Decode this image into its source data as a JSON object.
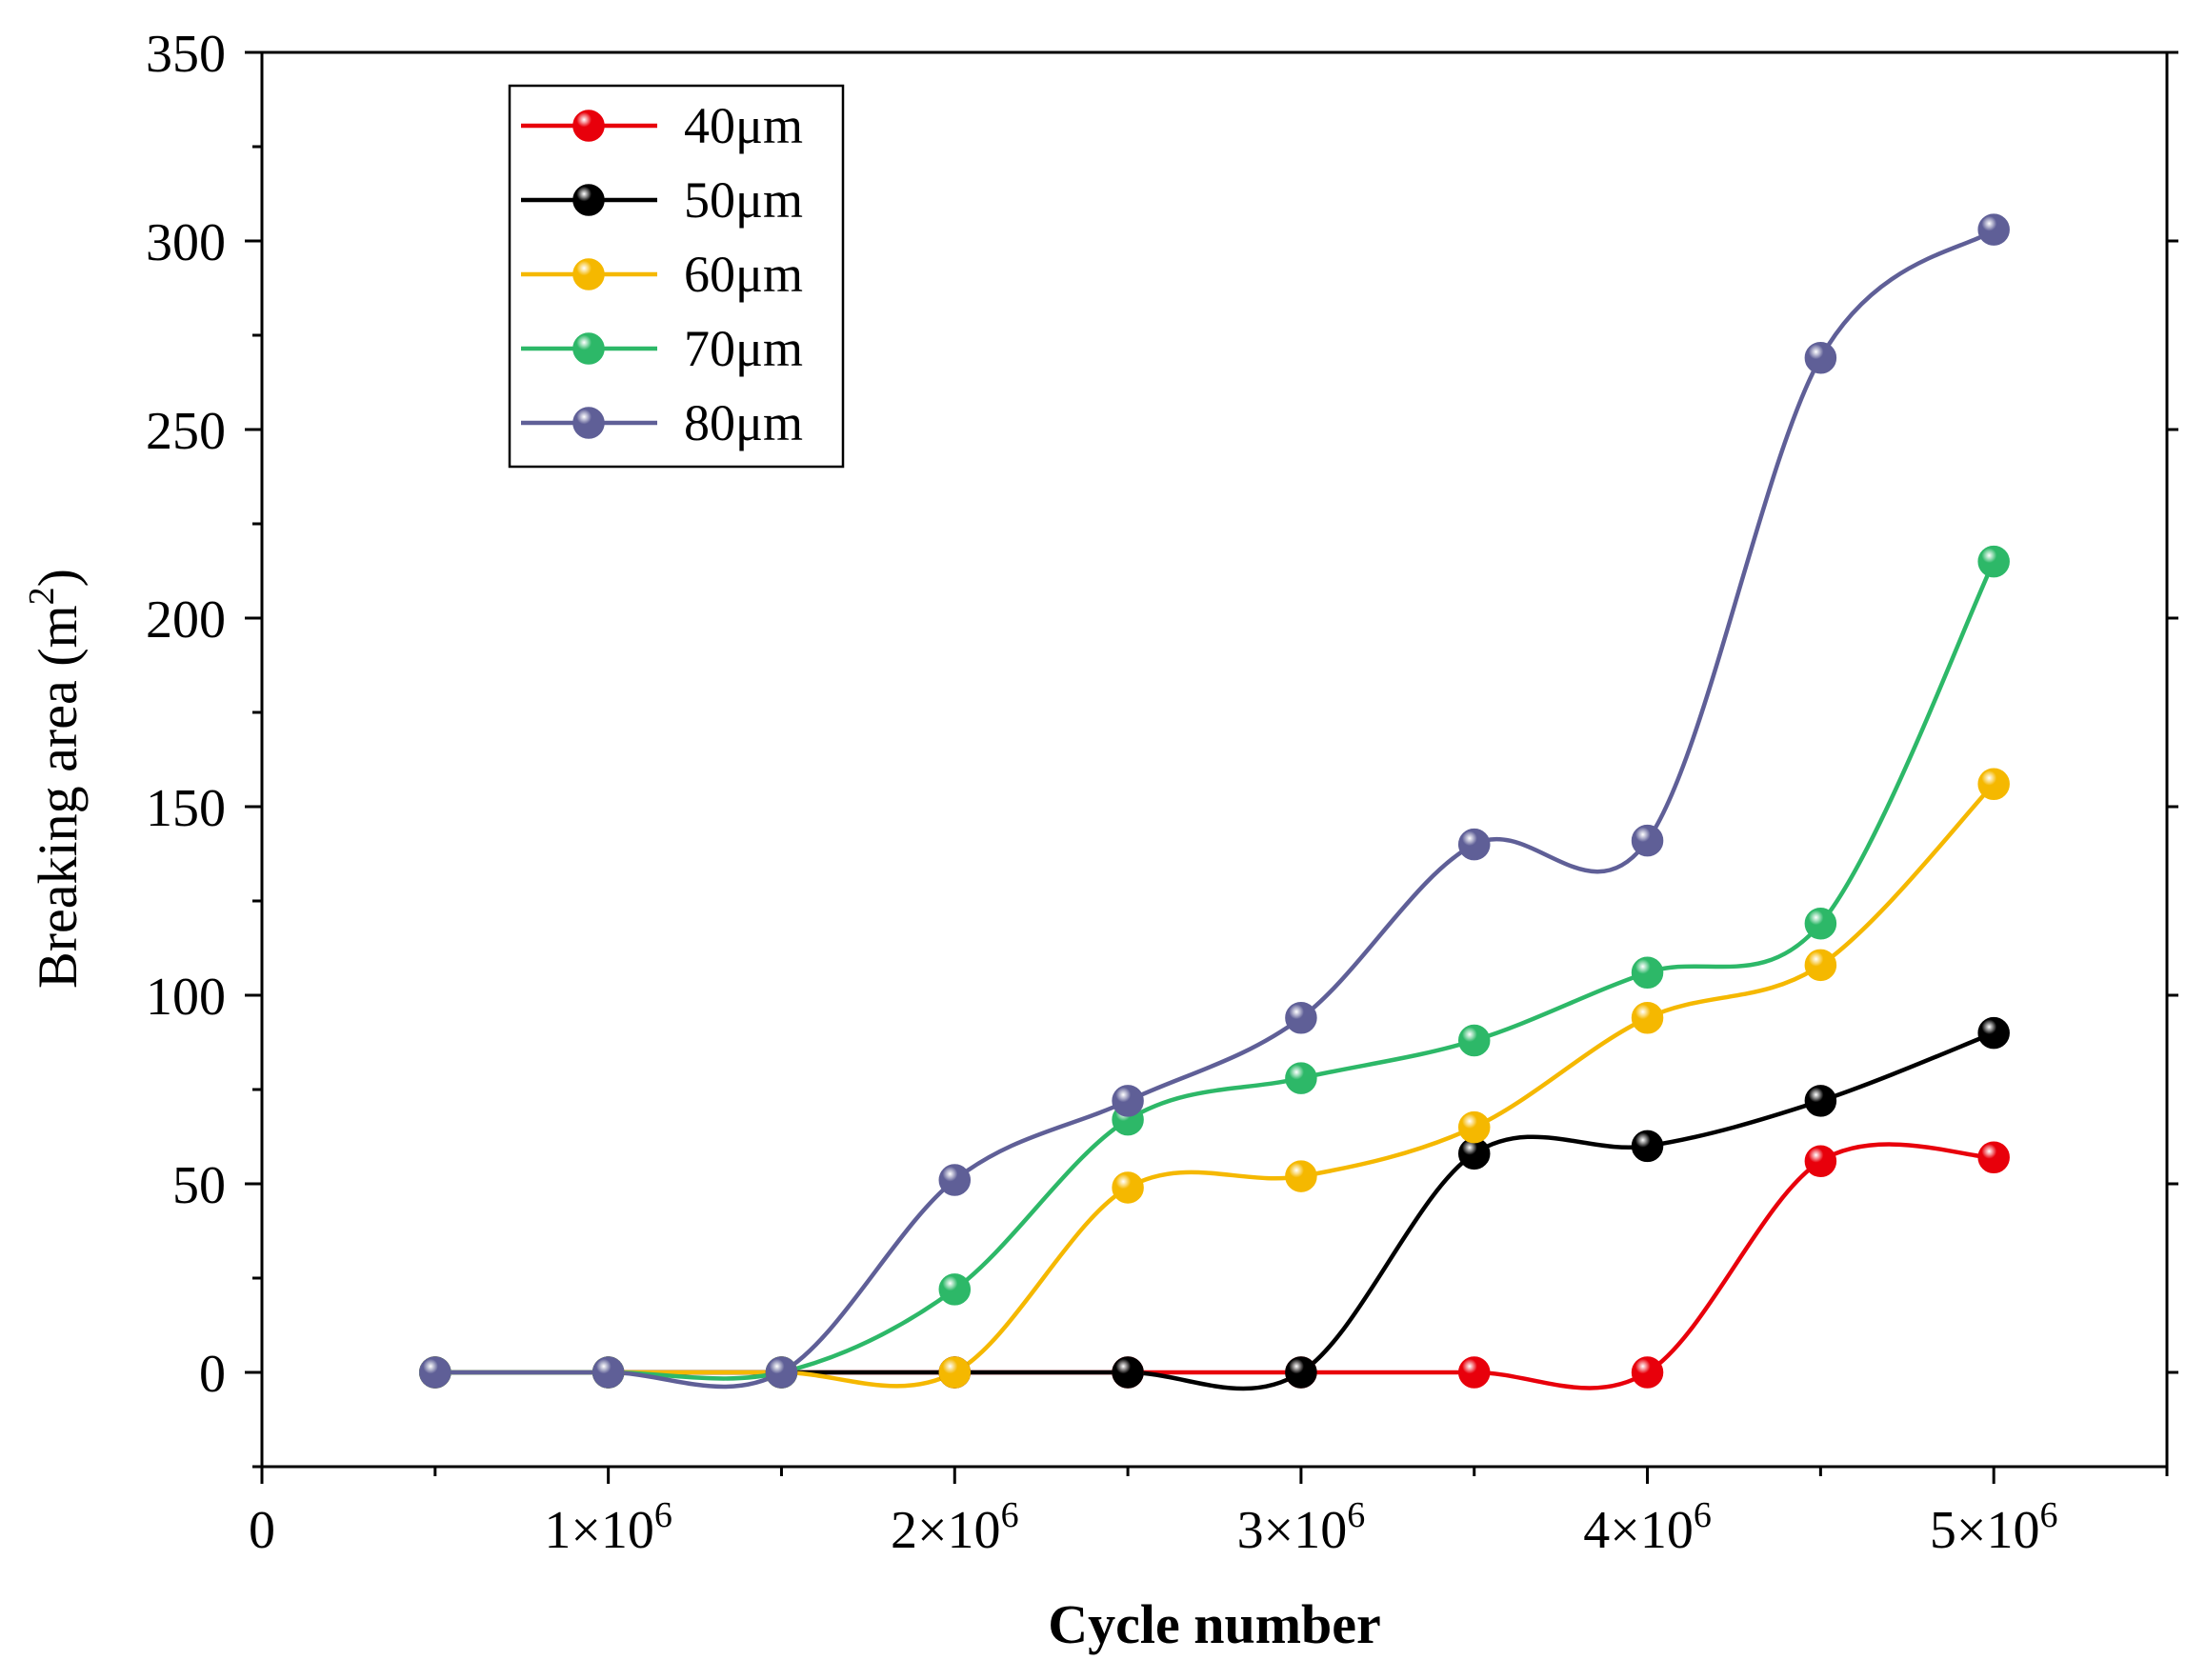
{
  "chart_data": {
    "type": "line",
    "title": "",
    "xlabel": "Cycle number",
    "ylabel": "Breaking area (m²)",
    "ylabel_base": "Breaking area (m",
    "ylabel_sup": "2",
    "ylabel_close": ")",
    "xlim": [
      0,
      5500000
    ],
    "ylim": [
      -25,
      350
    ],
    "xticks": [
      {
        "value": 0,
        "mantissa": "0",
        "exp": ""
      },
      {
        "value": 1000000,
        "mantissa": "1×10",
        "exp": "6"
      },
      {
        "value": 2000000,
        "mantissa": "2×10",
        "exp": "6"
      },
      {
        "value": 3000000,
        "mantissa": "3×10",
        "exp": "6"
      },
      {
        "value": 4000000,
        "mantissa": "4×10",
        "exp": "6"
      },
      {
        "value": 5000000,
        "mantissa": "5×10",
        "exp": "6"
      }
    ],
    "yticks": [
      0,
      50,
      100,
      150,
      200,
      250,
      300,
      350
    ],
    "yticks_text": [
      "0",
      "50",
      "100",
      "150",
      "200",
      "250",
      "300",
      "350"
    ],
    "grid": false,
    "legend_position": "top-left",
    "series": [
      {
        "name": "40μm",
        "color": "#e8000b",
        "x": [
          500000,
          1000000,
          1500000,
          2000000,
          2500000,
          3000000,
          3500000,
          4000000,
          4500000,
          5000000
        ],
        "values": [
          0,
          0,
          0,
          0,
          0,
          0,
          0,
          0,
          56,
          57
        ]
      },
      {
        "name": "50μm",
        "color": "#000000",
        "x": [
          500000,
          1000000,
          1500000,
          2000000,
          2500000,
          3000000,
          3500000,
          4000000,
          4500000,
          5000000
        ],
        "values": [
          0,
          0,
          0,
          0,
          0,
          0,
          58,
          60,
          72,
          90
        ]
      },
      {
        "name": "60μm",
        "color": "#f5b800",
        "x": [
          500000,
          1000000,
          1500000,
          2000000,
          2500000,
          3000000,
          3500000,
          4000000,
          4500000,
          5000000
        ],
        "values": [
          0,
          0,
          0,
          0,
          49,
          52,
          65,
          94,
          108,
          156
        ]
      },
      {
        "name": "70μm",
        "color": "#2db868",
        "x": [
          500000,
          1000000,
          1500000,
          2000000,
          2500000,
          3000000,
          3500000,
          4000000,
          4500000,
          5000000
        ],
        "values": [
          0,
          0,
          0,
          22,
          67,
          78,
          88,
          106,
          119,
          215
        ]
      },
      {
        "name": "80μm",
        "color": "#5f5f97",
        "x": [
          500000,
          1000000,
          1500000,
          2000000,
          2500000,
          3000000,
          3500000,
          4000000,
          4500000,
          5000000
        ],
        "values": [
          0,
          0,
          0,
          51,
          72,
          94,
          140,
          141,
          269,
          303
        ]
      }
    ]
  }
}
